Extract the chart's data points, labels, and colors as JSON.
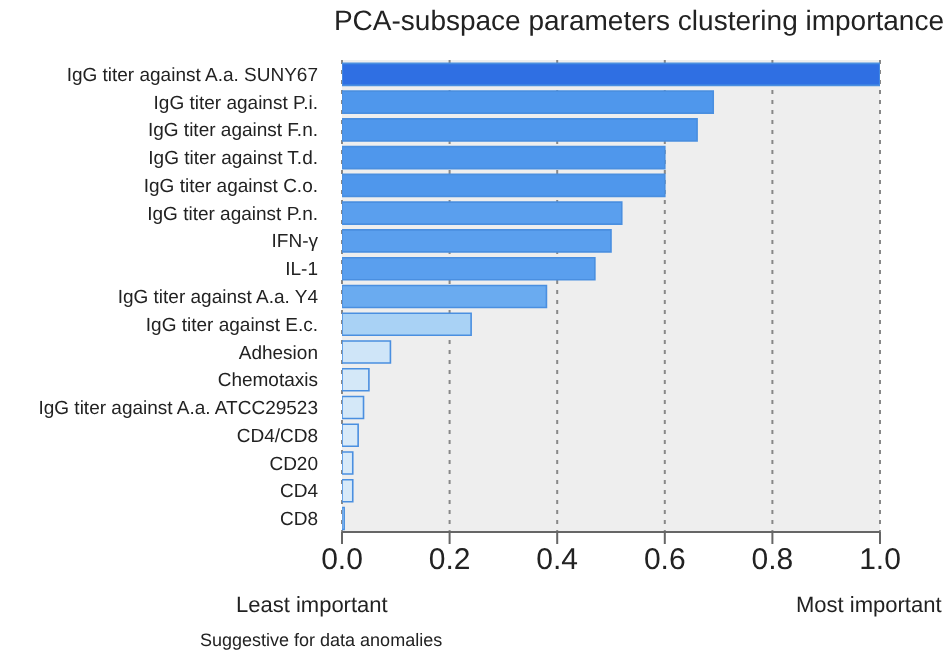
{
  "chart_data": {
    "type": "bar",
    "orientation": "horizontal",
    "title": "PCA-subspace parameters clustering importance",
    "categories": [
      "IgG titer against A.a. SUNY67",
      "IgG titer against P.i.",
      "IgG titer against F.n.",
      "IgG titer against T.d.",
      "IgG titer against C.o.",
      "IgG titer against P.n.",
      "IFN-γ",
      "IL-1",
      "IgG titer against A.a. Y4",
      "IgG titer against E.c.",
      "Adhesion",
      "Chemotaxis",
      "IgG titer against A.a. ATCC29523",
      "CD4/CD8",
      "CD20",
      "CD4",
      "CD8"
    ],
    "values": [
      1.0,
      0.69,
      0.66,
      0.6,
      0.6,
      0.52,
      0.5,
      0.47,
      0.38,
      0.24,
      0.09,
      0.05,
      0.04,
      0.03,
      0.02,
      0.02,
      0.004
    ],
    "colors": [
      "#2f6fe3",
      "#4f97ec",
      "#4f97ec",
      "#4f97ec",
      "#4f97ec",
      "#5a9fee",
      "#5a9fee",
      "#5a9fee",
      "#6aabf0",
      "#a9d2f5",
      "#cfe5f8",
      "#d4e8f8",
      "#d4e8f8",
      "#d8eaf9",
      "#d8eaf9",
      "#d8eaf9",
      "#d8eaf9"
    ],
    "xlim": [
      0,
      1
    ],
    "xticks": [
      {
        "value": 0,
        "label": "0.0"
      },
      {
        "value": 0.2,
        "label": "0.2"
      },
      {
        "value": 0.4,
        "label": "0.4"
      },
      {
        "value": 0.6,
        "label": "0.6"
      },
      {
        "value": 0.8,
        "label": "0.8"
      },
      {
        "value": 1,
        "label": "1.0"
      }
    ],
    "grid": "x",
    "annotations": [
      "Least important",
      "Most important",
      "Suggestive  for data anomalies"
    ]
  }
}
